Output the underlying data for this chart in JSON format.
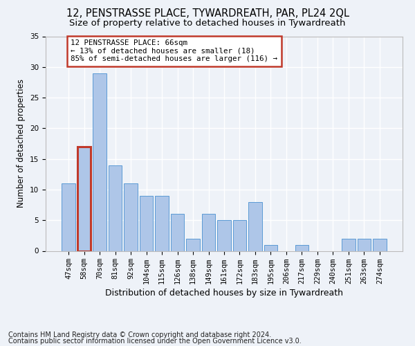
{
  "title1": "12, PENSTRASSE PLACE, TYWARDREATH, PAR, PL24 2QL",
  "title2": "Size of property relative to detached houses in Tywardreath",
  "xlabel": "Distribution of detached houses by size in Tywardreath",
  "ylabel": "Number of detached properties",
  "categories": [
    "47sqm",
    "58sqm",
    "70sqm",
    "81sqm",
    "92sqm",
    "104sqm",
    "115sqm",
    "126sqm",
    "138sqm",
    "149sqm",
    "161sqm",
    "172sqm",
    "183sqm",
    "195sqm",
    "206sqm",
    "217sqm",
    "229sqm",
    "240sqm",
    "251sqm",
    "263sqm",
    "274sqm"
  ],
  "values": [
    11,
    17,
    29,
    14,
    11,
    9,
    9,
    6,
    2,
    6,
    5,
    5,
    8,
    1,
    0,
    1,
    0,
    0,
    2,
    2,
    2
  ],
  "bar_color": "#aec6e8",
  "bar_edge_color": "#5b9bd5",
  "highlight_index": 1,
  "annotation_text": "12 PENSTRASSE PLACE: 66sqm\n← 13% of detached houses are smaller (18)\n85% of semi-detached houses are larger (116) →",
  "annotation_box_color": "white",
  "annotation_box_edge": "#c0392b",
  "ylim": [
    0,
    35
  ],
  "yticks": [
    0,
    5,
    10,
    15,
    20,
    25,
    30,
    35
  ],
  "footer1": "Contains HM Land Registry data © Crown copyright and database right 2024.",
  "footer2": "Contains public sector information licensed under the Open Government Licence v3.0.",
  "background_color": "#eef2f8",
  "grid_color": "#ffffff",
  "title1_fontsize": 10.5,
  "title2_fontsize": 9.5,
  "xlabel_fontsize": 9,
  "ylabel_fontsize": 8.5,
  "tick_fontsize": 7.5,
  "footer_fontsize": 7,
  "ann_fontsize": 7.8
}
